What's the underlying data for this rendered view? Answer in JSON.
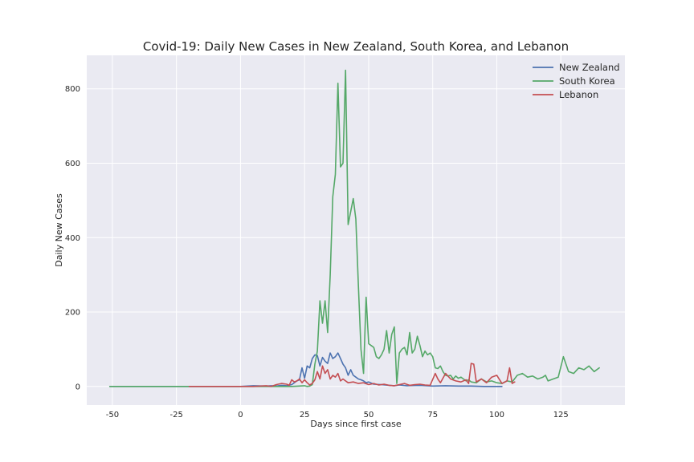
{
  "chart_data": {
    "type": "line",
    "title": "Covid-19: Daily New Cases in New Zealand, South Korea, and Lebanon",
    "xlabel": "Days since first case",
    "ylabel": "Daily New Cases",
    "xlim": [
      -60,
      150
    ],
    "ylim": [
      -50,
      890
    ],
    "xticks": [
      -50,
      -25,
      0,
      25,
      50,
      75,
      100,
      125
    ],
    "yticks": [
      0,
      200,
      400,
      600,
      800
    ],
    "grid": true,
    "legend_position": "top-right",
    "colors": {
      "background": "#eaeaf2",
      "grid": "#ffffff",
      "New Zealand": "#4c72b0",
      "South Korea": "#55a868",
      "Lebanon": "#c44e52"
    },
    "series": [
      {
        "name": "New Zealand",
        "x": [
          -51,
          -20,
          0,
          5,
          10,
          12,
          14,
          16,
          18,
          20,
          21,
          22,
          23,
          24,
          25,
          26,
          27,
          28,
          29,
          30,
          31,
          32,
          33,
          34,
          35,
          36,
          37,
          38,
          39,
          40,
          41,
          42,
          43,
          44,
          45,
          46,
          47,
          48,
          49,
          50,
          52,
          55,
          58,
          60,
          62,
          65,
          70,
          75,
          80,
          85,
          90,
          95,
          100,
          102
        ],
        "y": [
          0,
          0,
          0,
          2,
          1,
          2,
          1,
          3,
          2,
          5,
          10,
          15,
          18,
          50,
          22,
          55,
          50,
          75,
          85,
          83,
          55,
          78,
          68,
          62,
          90,
          75,
          80,
          90,
          75,
          60,
          50,
          30,
          45,
          30,
          25,
          20,
          18,
          15,
          10,
          12,
          6,
          5,
          3,
          2,
          4,
          2,
          3,
          1,
          2,
          1,
          1,
          0,
          0,
          0
        ]
      },
      {
        "name": "South Korea",
        "x": [
          -51,
          -20,
          0,
          10,
          20,
          25,
          26,
          27,
          28,
          29,
          30,
          31,
          32,
          33,
          34,
          35,
          36,
          37,
          38,
          39,
          40,
          41,
          42,
          43,
          44,
          45,
          46,
          47,
          48,
          49,
          50,
          51,
          52,
          53,
          54,
          55,
          56,
          57,
          58,
          59,
          60,
          61,
          62,
          63,
          64,
          65,
          66,
          67,
          68,
          69,
          70,
          71,
          72,
          73,
          74,
          75,
          76,
          77,
          78,
          79,
          80,
          81,
          82,
          83,
          84,
          85,
          86,
          87,
          88,
          89,
          90,
          92,
          94,
          96,
          98,
          100,
          102,
          104,
          106,
          108,
          110,
          112,
          114,
          116,
          118,
          119,
          120,
          122,
          124,
          126,
          128,
          130,
          132,
          134,
          136,
          138,
          140
        ],
        "y": [
          0,
          0,
          0,
          0,
          0,
          2,
          0,
          1,
          5,
          60,
          95,
          230,
          170,
          230,
          145,
          300,
          510,
          570,
          815,
          590,
          600,
          850,
          435,
          470,
          505,
          450,
          270,
          100,
          35,
          240,
          115,
          110,
          105,
          80,
          75,
          85,
          100,
          150,
          90,
          140,
          160,
          8,
          90,
          100,
          105,
          85,
          145,
          90,
          100,
          135,
          110,
          80,
          95,
          85,
          90,
          80,
          50,
          48,
          55,
          40,
          30,
          28,
          30,
          20,
          28,
          22,
          25,
          20,
          15,
          18,
          12,
          10,
          20,
          12,
          15,
          10,
          8,
          15,
          12,
          30,
          35,
          25,
          28,
          20,
          25,
          30,
          15,
          20,
          25,
          80,
          40,
          35,
          50,
          45,
          55,
          40,
          50
        ]
      },
      {
        "name": "Lebanon",
        "x": [
          -20,
          0,
          5,
          10,
          12,
          14,
          16,
          18,
          19,
          20,
          21,
          22,
          23,
          24,
          25,
          26,
          27,
          28,
          29,
          30,
          31,
          32,
          33,
          34,
          35,
          36,
          37,
          38,
          39,
          40,
          42,
          44,
          46,
          48,
          50,
          52,
          54,
          56,
          58,
          60,
          62,
          64,
          66,
          68,
          70,
          72,
          74,
          76,
          77,
          78,
          80,
          82,
          84,
          86,
          88,
          89,
          90,
          91,
          92,
          94,
          96,
          98,
          100,
          102,
          104,
          105,
          106,
          107
        ],
        "y": [
          0,
          0,
          0,
          2,
          0,
          5,
          8,
          6,
          3,
          18,
          12,
          15,
          20,
          10,
          18,
          10,
          4,
          8,
          18,
          40,
          20,
          55,
          35,
          45,
          20,
          30,
          25,
          35,
          15,
          20,
          10,
          12,
          8,
          10,
          5,
          8,
          4,
          6,
          3,
          2,
          5,
          8,
          3,
          5,
          6,
          4,
          3,
          35,
          20,
          10,
          35,
          20,
          15,
          12,
          18,
          8,
          62,
          60,
          12,
          20,
          10,
          25,
          30,
          8,
          15,
          50,
          8,
          12
        ]
      }
    ]
  }
}
